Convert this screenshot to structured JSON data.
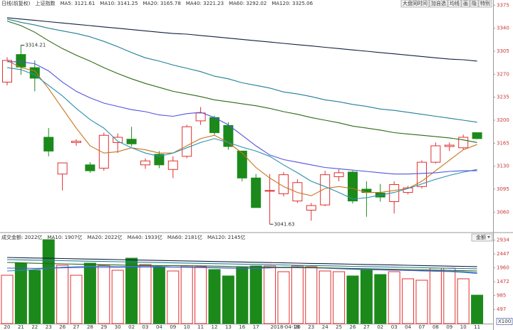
{
  "header": {
    "buttons": [
      "大盘同时间",
      "加自选",
      "均线",
      "画",
      "隐",
      "特别"
    ]
  },
  "chart_data": [
    {
      "type": "candlestick",
      "period": "日线(前复权)",
      "title": "上证指数",
      "categories": [
        "20",
        "21",
        "22",
        "23",
        "26",
        "27",
        "28",
        "29",
        "30",
        "02",
        "03",
        "04",
        "09",
        "10",
        "11",
        "12",
        "13",
        "16",
        "17",
        "2018-04-18",
        null,
        "20",
        "23",
        "24",
        "25",
        "26",
        "27",
        "02",
        "03",
        "04",
        "07",
        "08",
        "09",
        "10",
        "11"
      ],
      "open": [
        3258,
        3300,
        3280,
        3174,
        3118,
        3166,
        3132,
        3127,
        3166,
        3171,
        3132,
        3148,
        3125,
        3145,
        3199,
        3204,
        3192,
        3153,
        3112,
        3092,
        3088,
        3077,
        3063,
        3071,
        3114,
        3121,
        3095,
        3089,
        3076,
        3090,
        3099,
        3136,
        3160,
        3158,
        3181
      ],
      "high": [
        3296,
        3314.21,
        3291,
        3188,
        3135,
        3171,
        3136,
        3181,
        3180,
        3190,
        3142,
        3153,
        3145,
        3193,
        3220,
        3207,
        3197,
        3153,
        3118,
        3118,
        3121,
        3110,
        3074,
        3123,
        3125,
        3123,
        3107,
        3103,
        3107,
        3100,
        3139,
        3166,
        3166,
        3178,
        3181
      ],
      "low": [
        3253,
        3269,
        3244,
        3145,
        3093,
        3161,
        3120,
        3123,
        3150,
        3160,
        3126,
        3127,
        3112,
        3142,
        3193,
        3177,
        3155,
        3107,
        3067,
        3041.63,
        3084,
        3074,
        3047,
        3069,
        3107,
        3073,
        3053,
        3076,
        3058,
        3087,
        3096,
        3134,
        3153,
        3155,
        3171
      ],
      "close": [
        3291,
        3281,
        3264,
        3153,
        3135,
        3168,
        3123,
        3177,
        3174,
        3164,
        3138,
        3132,
        3138,
        3190,
        3211,
        3181,
        3160,
        3112,
        3067,
        3093,
        3117,
        3105,
        3070,
        3117,
        3120,
        3077,
        3090,
        3083,
        3102,
        3097,
        3136,
        3161,
        3162,
        3174,
        3172
      ],
      "up_color": "#e0302f",
      "down_color": "#1b8a1b",
      "series": [
        {
          "name": "MA5: 3121.61",
          "color": "#c8741a",
          "values": [
            3291,
            3280,
            3275,
            3248,
            3218,
            3188,
            3161,
            3150,
            3152,
            3158,
            3155,
            3150,
            3150,
            3161,
            3172,
            3177,
            3166,
            3150,
            3128,
            3112,
            3099,
            3090,
            3085,
            3096,
            3099,
            3096,
            3090,
            3090,
            3093,
            3096,
            3107,
            3123,
            3139,
            3155,
            3163
          ]
        },
        {
          "name": "MA10: 3141.25",
          "color": "#2a8fb0",
          "values": [
            3280,
            3277,
            3269,
            3253,
            3237,
            3218,
            3201,
            3188,
            3168,
            3158,
            3150,
            3145,
            3150,
            3158,
            3166,
            3172,
            3166,
            3159,
            3153,
            3145,
            3132,
            3120,
            3107,
            3099,
            3090,
            3080,
            3082,
            3086,
            3090,
            3096,
            3103,
            3110,
            3116,
            3121,
            3125
          ]
        },
        {
          "name": "MA20: 3165.78",
          "color": "#5252e0",
          "values": [
            3289,
            3289,
            3286,
            3275,
            3258,
            3244,
            3234,
            3226,
            3221,
            3216,
            3213,
            3208,
            3206,
            3210,
            3212,
            3204,
            3193,
            3177,
            3161,
            3147,
            3140,
            3136,
            3132,
            3128,
            3126,
            3124,
            3122,
            3120,
            3118,
            3118,
            3119,
            3120,
            3122,
            3123,
            3123
          ]
        },
        {
          "name": "MA40: 3221.23",
          "color": "#2d6a14",
          "values": [
            3351,
            3344,
            3334,
            3321,
            3309,
            3299,
            3290,
            3280,
            3271,
            3263,
            3256,
            3250,
            3244,
            3240,
            3236,
            3231,
            3228,
            3225,
            3222,
            3218,
            3213,
            3209,
            3204,
            3200,
            3196,
            3191,
            3188,
            3185,
            3181,
            3179,
            3177,
            3175,
            3173,
            3170,
            3166
          ]
        },
        {
          "name": "MA60: 3292.02",
          "color": "#1f7f96",
          "values": [
            3354,
            3349,
            3345,
            3340,
            3336,
            3332,
            3327,
            3320,
            3312,
            3303,
            3295,
            3290,
            3284,
            3279,
            3274,
            3267,
            3263,
            3257,
            3253,
            3249,
            3243,
            3240,
            3236,
            3231,
            3228,
            3224,
            3221,
            3217,
            3215,
            3212,
            3209,
            3206,
            3203,
            3200,
            3197
          ]
        },
        {
          "name": "MA120: 3325.06",
          "color": "#13203f",
          "values": [
            3356,
            3354,
            3352,
            3350,
            3348,
            3346,
            3344,
            3342,
            3340,
            3338,
            3336,
            3334,
            3332,
            3331,
            3329,
            3327,
            3325,
            3323,
            3321,
            3319,
            3317,
            3315,
            3313,
            3311,
            3309,
            3307,
            3305,
            3303,
            3301,
            3299,
            3297,
            3295,
            3293,
            3292,
            3290
          ]
        }
      ],
      "ylim": [
        3030,
        3383
      ],
      "yticks": [
        3375,
        3340,
        3305,
        3270,
        3235,
        3200,
        3165,
        3130,
        3095,
        3060
      ],
      "grid": false
    },
    {
      "type": "bar",
      "title": "成交金额: 2022亿",
      "values": [
        1700,
        2125,
        1875,
        2950,
        2050,
        1700,
        2125,
        2050,
        1875,
        2300,
        2075,
        1975,
        1850,
        2025,
        2000,
        1900,
        1675,
        1975,
        2025,
        2025,
        1825,
        2025,
        2000,
        1850,
        1825,
        1675,
        1875,
        1725,
        1825,
        1575,
        1525,
        1950,
        1950,
        1575,
        1000
      ],
      "series": [
        {
          "name": "MA10: 1907亿",
          "color": "#2a8fb0",
          "values": [
            1850,
            1870,
            1900,
            1950,
            1980,
            2000,
            2010,
            2020,
            2000,
            2010,
            2030,
            2010,
            1990,
            1990,
            1980,
            1970,
            1960,
            1950,
            1940,
            1960,
            1980,
            1990,
            1970,
            1950,
            1930,
            1910,
            1900,
            1890,
            1880,
            1870,
            1850,
            1840,
            1830,
            1800,
            1760
          ]
        },
        {
          "name": "MA20: 2022亿",
          "color": "#5252e0",
          "values": [
            1950,
            1950,
            1940,
            1950,
            1960,
            1970,
            1975,
            1975,
            1980,
            1985,
            1990,
            1990,
            1985,
            1980,
            1970,
            1960,
            1950,
            1945,
            1950,
            1960,
            1970,
            1965,
            1960,
            1950,
            1935,
            1920,
            1900,
            1890,
            1880,
            1870,
            1860,
            1850,
            1840,
            1820,
            1790
          ]
        },
        {
          "name": "MA40: 1933亿",
          "color": "#2d6a14",
          "values": [
            2150,
            2140,
            2120,
            2110,
            2100,
            2090,
            2080,
            2070,
            2060,
            2050,
            2045,
            2040,
            2040,
            2035,
            2030,
            2020,
            2010,
            2000,
            1990,
            1985,
            1980,
            1975,
            1970,
            1960,
            1950,
            1940,
            1930,
            1920,
            1910,
            1900,
            1890,
            1880,
            1870,
            1860,
            1850
          ]
        },
        {
          "name": "MA60: 2181亿",
          "color": "#1f7f96",
          "values": [
            2250,
            2241,
            2231,
            2222,
            2212,
            2203,
            2193,
            2184,
            2174,
            2165,
            2155,
            2146,
            2136,
            2127,
            2117,
            2108,
            2098,
            2089,
            2079,
            2070,
            2060,
            2051,
            2041,
            2032,
            2022,
            2013,
            2003,
            1994,
            1984,
            1975,
            1965,
            1956,
            1946,
            1937,
            1927
          ]
        },
        {
          "name": "MA120: 2145亿",
          "color": "#13203f",
          "values": [
            2325,
            2316,
            2306,
            2297,
            2287,
            2278,
            2268,
            2259,
            2249,
            2240,
            2230,
            2221,
            2211,
            2202,
            2192,
            2183,
            2173,
            2164,
            2154,
            2145,
            2135,
            2126,
            2116,
            2107,
            2097,
            2088,
            2078,
            2069,
            2059,
            2050,
            2040,
            2031,
            2021,
            2012,
            2002
          ]
        }
      ],
      "ylim": [
        0,
        3000
      ],
      "yticks": [
        2934,
        2447,
        1960,
        1472,
        985,
        497
      ],
      "unit": "X100",
      "selector": "金额",
      "grid": false
    }
  ]
}
